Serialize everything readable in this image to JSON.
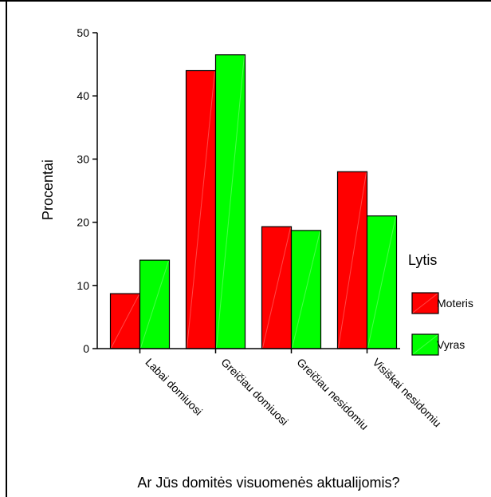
{
  "chart_data": {
    "type": "bar",
    "title": "",
    "xlabel": "Ar Jūs domitės visuomenės aktualijomis?",
    "ylabel": "Procentai",
    "ylim": [
      0,
      50
    ],
    "yticks": [
      0,
      10,
      20,
      30,
      40,
      50
    ],
    "grid": false,
    "legend_position": "right",
    "legend_title": "Lytis",
    "categories": [
      "Labai domiuosi",
      "Greičiau domiuosi",
      "Greičiau nesidomiu",
      "Visiškai nesidomiu"
    ],
    "series": [
      {
        "name": "Moteris",
        "color": "#ff0000",
        "values": [
          8.7,
          44.0,
          19.3,
          28.0
        ]
      },
      {
        "name": "Vyras",
        "color": "#00ff00",
        "values": [
          14.0,
          46.5,
          18.7,
          21.0
        ]
      }
    ]
  }
}
